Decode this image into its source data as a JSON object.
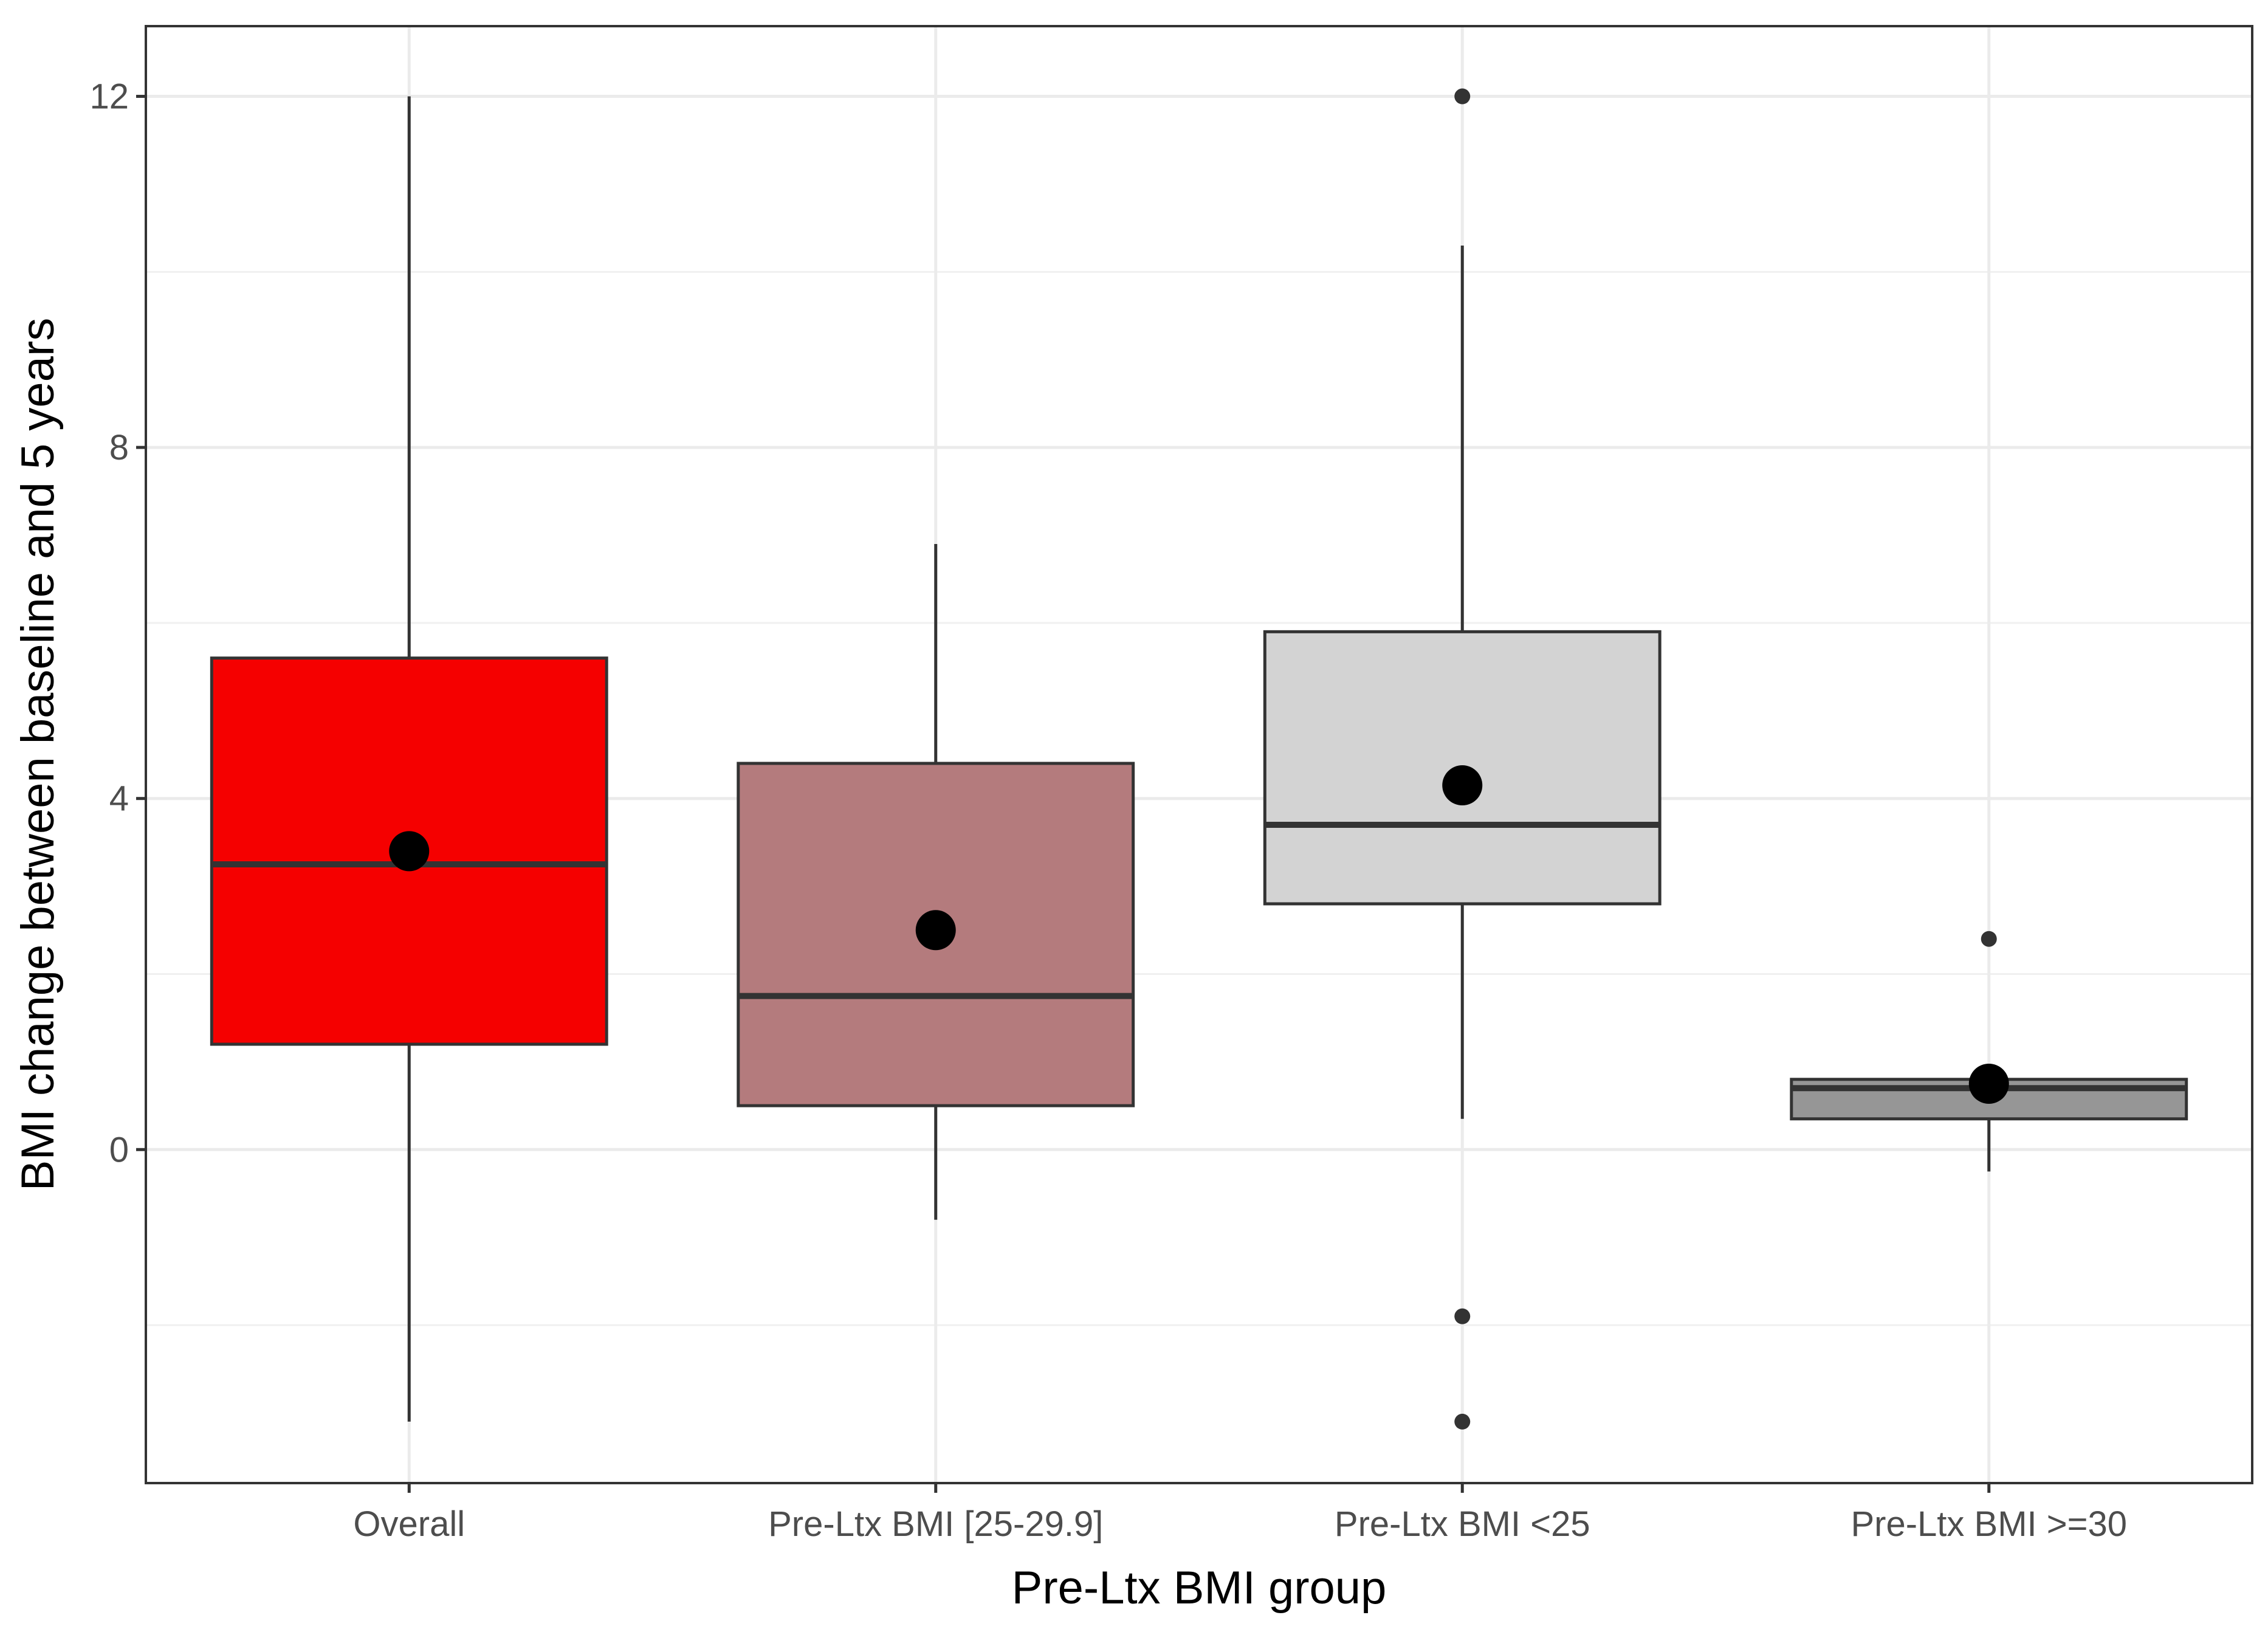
{
  "chart_data": {
    "type": "boxplot",
    "title": "",
    "xlabel": "Pre-Ltx BMI group",
    "ylabel": "BMI change between baseline and 5 years",
    "ylim": [
      -3.8,
      12.8
    ],
    "yticks": [
      0,
      4,
      8,
      12
    ],
    "grid": true,
    "legend": "none",
    "categories": [
      "Overall",
      "Pre-Ltx BMI [25-29.9]",
      "Pre-Ltx BMI <25",
      "Pre-Ltx BMI >=30"
    ],
    "series": [
      {
        "category": "Overall",
        "color": "#f50000",
        "whisker_low": -3.1,
        "q1": 1.2,
        "median": 3.25,
        "q3": 5.6,
        "whisker_high": 12.0,
        "mean": 3.4,
        "outliers": []
      },
      {
        "category": "Pre-Ltx BMI [25-29.9]",
        "color": "#b47b7d",
        "whisker_low": -0.8,
        "q1": 0.5,
        "median": 1.75,
        "q3": 4.4,
        "whisker_high": 6.9,
        "mean": 2.5,
        "outliers": []
      },
      {
        "category": "Pre-Ltx BMI <25",
        "color": "#d3d3d3",
        "whisker_low": 0.35,
        "q1": 2.8,
        "median": 3.7,
        "q3": 5.9,
        "whisker_high": 10.3,
        "mean": 4.15,
        "outliers": [
          12.0,
          -1.9,
          -3.1
        ]
      },
      {
        "category": "Pre-Ltx BMI >=30",
        "color": "#969696",
        "whisker_low": -0.25,
        "q1": 0.35,
        "median": 0.7,
        "q3": 0.8,
        "whisker_high": 0.8,
        "mean": 0.75,
        "outliers": [
          2.4
        ]
      }
    ]
  }
}
